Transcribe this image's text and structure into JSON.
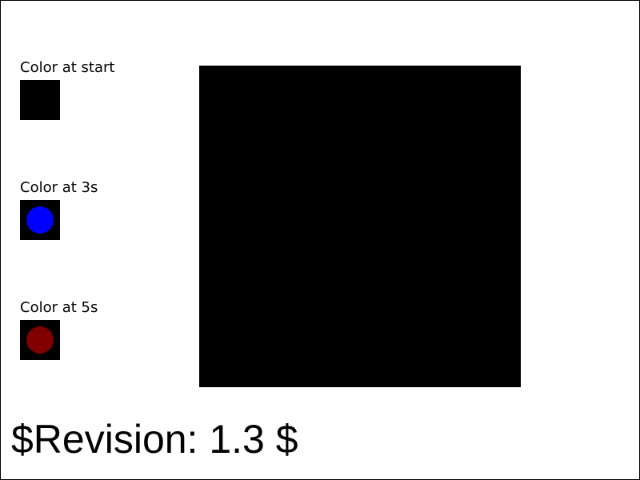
{
  "samples": [
    {
      "label": "Color at start",
      "dot_color": ""
    },
    {
      "label": "Color at 3s",
      "dot_color": "#0000ff"
    },
    {
      "label": "Color at 5s",
      "dot_color": "#800000"
    }
  ],
  "canvas_color": "#000000",
  "revision": "$Revision: 1.3 $"
}
